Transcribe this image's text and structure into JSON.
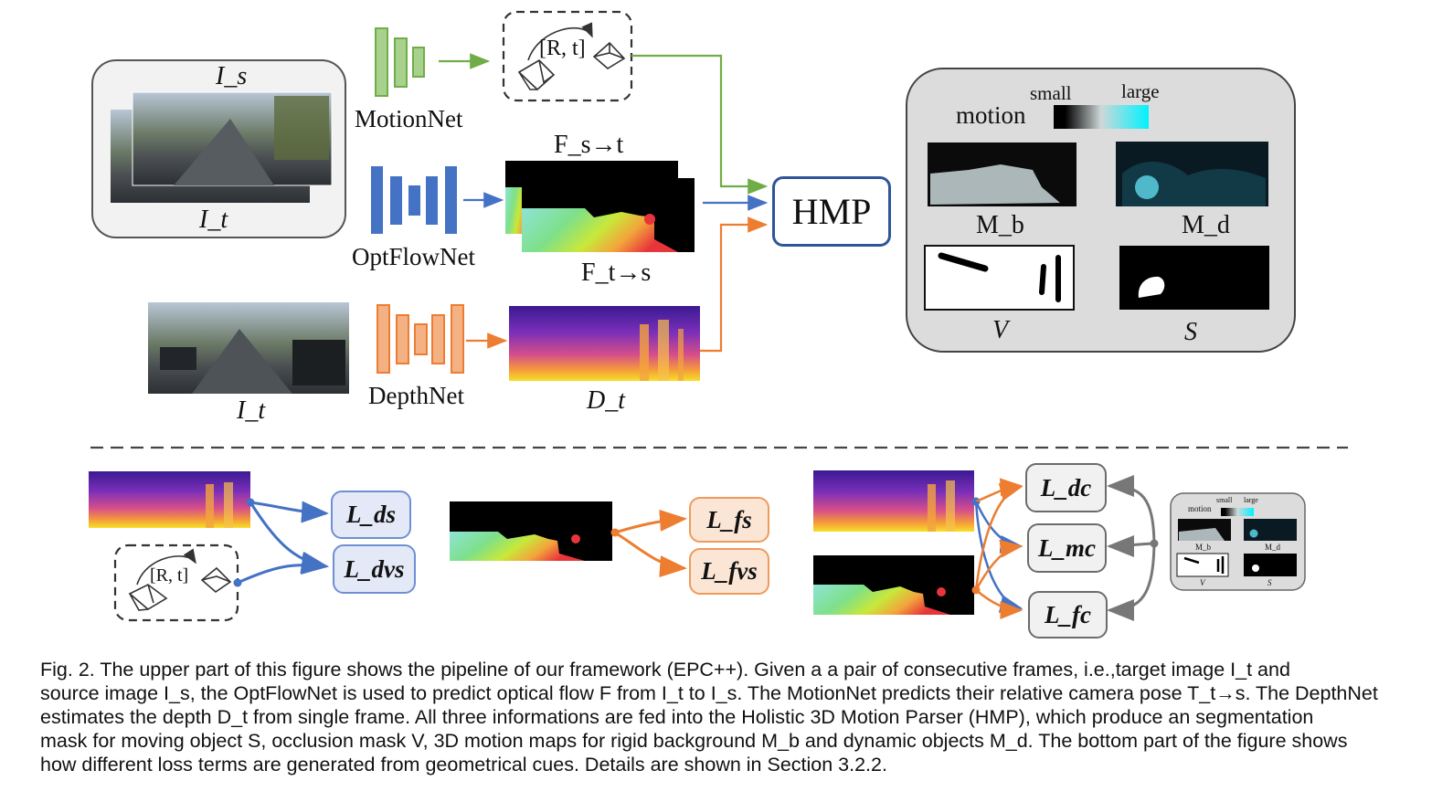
{
  "labels": {
    "is": "I_s",
    "it_top": "I_t",
    "it_bottom": "I_t",
    "motionnet": "MotionNet",
    "optflownet": "OptFlowNet",
    "depthnet": "DepthNet",
    "pose": "[R, t]",
    "pose_small": "[R, t]",
    "fst": "F_s→t",
    "fts": "F_t→s",
    "dt": "D_t",
    "hmp": "HMP",
    "motion": "motion",
    "small": "small",
    "large": "large",
    "mb": "M_b",
    "md": "M_d",
    "v": "V",
    "s": "S"
  },
  "losses": {
    "ds": "L_ds",
    "dvs": "L_dvs",
    "fs": "L_fs",
    "fvs": "L_fvs",
    "dc": "L_dc",
    "mc": "L_mc",
    "fc": "L_fc"
  },
  "mini_panel": {
    "motion": "motion",
    "small": "small",
    "large": "large",
    "mb": "M_b",
    "md": "M_d",
    "v": "V",
    "s": "S"
  },
  "caption": {
    "line1": "Fig. 2. The upper part of this figure shows the pipeline of our framework (EPC++). Given a a pair of consecutive frames, i.e.,target image I_t and",
    "line2": "source image I_s, the OptFlowNet is used to predict optical flow F from I_t to I_s. The MotionNet predicts their relative camera pose T_t→s. The DepthNet",
    "line3": "estimates the depth D_t from single frame. All three informations are fed into the Holistic 3D Motion Parser (HMP), which produce an segmentation",
    "line4": "mask for moving object S, occlusion mask V, 3D motion maps for rigid background M_b and dynamic objects M_d. The bottom part of the figure shows",
    "line5": "how different loss terms are generated from geometrical cues. Details are shown in Section 3.2.2."
  },
  "colors": {
    "motion_green": "#70ad47",
    "flow_blue": "#4472c4",
    "depth_orange": "#ed7d31",
    "hmp_border": "#2f5597",
    "panel_gray": "#dcdcdc",
    "loss_blue_bg": "#e4e9f8",
    "loss_orange_bg": "#fbe6d6",
    "loss_gray_bg": "#f1f1f1"
  }
}
